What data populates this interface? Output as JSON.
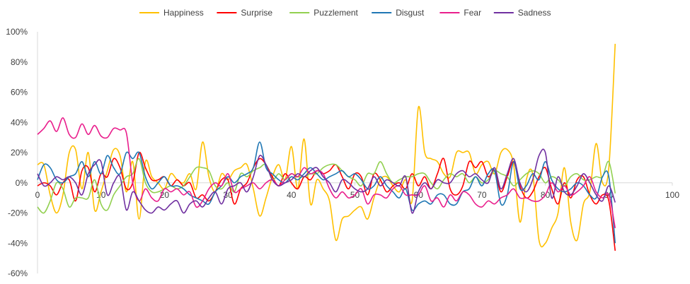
{
  "chart_data": {
    "type": "line",
    "legend_position": "top",
    "grid": "none",
    "xlim": [
      0,
      100
    ],
    "ylim": [
      -0.6,
      1.0
    ],
    "x_ticks": [
      "0",
      "10",
      "20",
      "30",
      "40",
      "50",
      "60",
      "70",
      "80",
      "90",
      "100"
    ],
    "y_ticks": [
      "100%",
      "80%",
      "60%",
      "40%",
      "20%",
      "0%",
      "-20%",
      "-40%",
      "-60%"
    ],
    "series": [
      {
        "name": "Happiness",
        "color": "#FFC000",
        "x": [
          0,
          1,
          2,
          3,
          4,
          5,
          6,
          7,
          8,
          9,
          10,
          11,
          12,
          13,
          14,
          15,
          16,
          17,
          18,
          19,
          20,
          21,
          22,
          23,
          24,
          25,
          26,
          27,
          28,
          29,
          30,
          31,
          32,
          33,
          34,
          35,
          36,
          37,
          38,
          39,
          40,
          41,
          42,
          43,
          44,
          45,
          46,
          47,
          48,
          49,
          50,
          51,
          52,
          53,
          54,
          55,
          56,
          57,
          58,
          59,
          60,
          61,
          62,
          63,
          64,
          65,
          66,
          67,
          68,
          69,
          70,
          71,
          72,
          73,
          74,
          75,
          76,
          77,
          78,
          79,
          80,
          81,
          82,
          83,
          84,
          85,
          86,
          87,
          88,
          89,
          90,
          91
        ],
        "y": [
          0.12,
          0.12,
          -0.08,
          -0.2,
          -0.08,
          0.2,
          0.22,
          -0.04,
          0.2,
          -0.18,
          -0.06,
          0.08,
          0.22,
          0.18,
          -0.06,
          0.14,
          -0.24,
          0.14,
          0.04,
          0.0,
          -0.04,
          0.06,
          0.02,
          0.0,
          0.06,
          -0.04,
          0.27,
          0.04,
          -0.06,
          0.06,
          0.02,
          0.08,
          0.1,
          0.12,
          -0.04,
          -0.22,
          -0.1,
          0.04,
          0.12,
          0.02,
          0.24,
          -0.04,
          0.29,
          -0.14,
          0.02,
          -0.04,
          -0.12,
          -0.38,
          -0.24,
          -0.22,
          -0.18,
          -0.16,
          -0.24,
          -0.1,
          0.02,
          0.04,
          -0.02,
          -0.06,
          0.02,
          -0.12,
          0.5,
          0.2,
          0.16,
          0.14,
          0.06,
          0.04,
          0.2,
          0.2,
          0.2,
          0.06,
          0.12,
          0.14,
          0.06,
          0.2,
          0.22,
          0.12,
          -0.26,
          0.02,
          0.06,
          -0.38,
          -0.4,
          -0.3,
          -0.2,
          0.1,
          -0.26,
          -0.38,
          -0.14,
          -0.06,
          0.26,
          0.0,
          0.1,
          0.92
        ]
      },
      {
        "name": "Surprise",
        "color": "#FF0000",
        "x": [
          0,
          1,
          2,
          3,
          4,
          5,
          6,
          7,
          8,
          9,
          10,
          11,
          12,
          13,
          14,
          15,
          16,
          17,
          18,
          19,
          20,
          21,
          22,
          23,
          24,
          25,
          26,
          27,
          28,
          29,
          30,
          31,
          32,
          33,
          34,
          35,
          36,
          37,
          38,
          39,
          40,
          41,
          42,
          43,
          44,
          45,
          46,
          47,
          48,
          49,
          50,
          51,
          52,
          53,
          54,
          55,
          56,
          57,
          58,
          59,
          60,
          61,
          62,
          63,
          64,
          65,
          66,
          67,
          68,
          69,
          70,
          71,
          72,
          73,
          74,
          75,
          76,
          77,
          78,
          79,
          80,
          81,
          82,
          83,
          84,
          85,
          86,
          87,
          88,
          89,
          90,
          91
        ],
        "y": [
          -0.02,
          0.0,
          -0.02,
          -0.08,
          0.0,
          0.02,
          -0.12,
          0.08,
          0.1,
          -0.06,
          0.06,
          0.04,
          0.16,
          0.1,
          -0.04,
          0.0,
          0.2,
          0.1,
          0.02,
          0.02,
          0.04,
          -0.02,
          0.02,
          -0.02,
          0.0,
          -0.1,
          -0.08,
          -0.12,
          -0.06,
          0.02,
          0.02,
          -0.14,
          -0.04,
          0.0,
          0.1,
          0.16,
          0.12,
          0.04,
          -0.02,
          0.06,
          0.0,
          -0.04,
          0.04,
          0.02,
          0.08,
          0.06,
          0.08,
          0.12,
          0.04,
          -0.04,
          0.06,
          0.04,
          -0.08,
          0.06,
          0.02,
          -0.06,
          -0.02,
          0.0,
          -0.04,
          0.06,
          -0.02,
          0.04,
          -0.04,
          0.06,
          0.16,
          -0.04,
          -0.08,
          -0.02,
          0.14,
          0.1,
          0.14,
          0.04,
          0.08,
          -0.06,
          0.04,
          0.14,
          -0.02,
          -0.1,
          -0.06,
          0.04,
          0.1,
          -0.04,
          -0.14,
          0.0,
          -0.1,
          0.02,
          0.04,
          -0.08,
          -0.14,
          -0.08,
          -0.12,
          -0.45
        ]
      },
      {
        "name": "Puzzlement",
        "color": "#92D050",
        "x": [
          0,
          1,
          2,
          3,
          4,
          5,
          6,
          7,
          8,
          9,
          10,
          11,
          12,
          13,
          14,
          15,
          16,
          17,
          18,
          19,
          20,
          21,
          22,
          23,
          24,
          25,
          26,
          27,
          28,
          29,
          30,
          31,
          32,
          33,
          34,
          35,
          36,
          37,
          38,
          39,
          40,
          41,
          42,
          43,
          44,
          45,
          46,
          47,
          48,
          49,
          50,
          51,
          52,
          53,
          54,
          55,
          56,
          57,
          58,
          59,
          60,
          61,
          62,
          63,
          64,
          65,
          66,
          67,
          68,
          69,
          70,
          71,
          72,
          73,
          74,
          75,
          76,
          77,
          78,
          79,
          80,
          81,
          82,
          83,
          84,
          85,
          86,
          87,
          88,
          89,
          90,
          91
        ],
        "y": [
          -0.16,
          -0.2,
          -0.12,
          0.0,
          -0.04,
          -0.16,
          -0.1,
          -0.1,
          -0.1,
          0.02,
          -0.14,
          -0.18,
          -0.08,
          -0.02,
          0.04,
          0.06,
          0.16,
          0.0,
          -0.06,
          -0.06,
          -0.04,
          -0.02,
          -0.04,
          -0.02,
          0.04,
          0.1,
          0.1,
          0.08,
          -0.02,
          -0.04,
          0.0,
          -0.06,
          0.06,
          0.04,
          0.08,
          0.1,
          0.12,
          0.02,
          0.06,
          0.02,
          0.06,
          0.04,
          0.04,
          0.06,
          0.06,
          0.1,
          0.12,
          0.12,
          0.08,
          0.04,
          0.02,
          -0.02,
          0.06,
          0.06,
          0.14,
          0.06,
          0.0,
          0.02,
          0.04,
          0.04,
          0.06,
          0.06,
          0.0,
          -0.04,
          0.02,
          0.06,
          0.04,
          0.06,
          0.0,
          0.04,
          0.0,
          0.02,
          0.08,
          0.06,
          0.04,
          -0.02,
          0.02,
          0.06,
          0.08,
          0.06,
          0.0,
          0.04,
          0.02,
          -0.02,
          0.04,
          0.06,
          0.02,
          0.02,
          0.04,
          0.04,
          0.14,
          -0.07
        ]
      },
      {
        "name": "Disgust",
        "color": "#1F77B4",
        "x": [
          0,
          1,
          2,
          3,
          4,
          5,
          6,
          7,
          8,
          9,
          10,
          11,
          12,
          13,
          14,
          15,
          16,
          17,
          18,
          19,
          20,
          21,
          22,
          23,
          24,
          25,
          26,
          27,
          28,
          29,
          30,
          31,
          32,
          33,
          34,
          35,
          36,
          37,
          38,
          39,
          40,
          41,
          42,
          43,
          44,
          45,
          46,
          47,
          48,
          49,
          50,
          51,
          52,
          53,
          54,
          55,
          56,
          57,
          58,
          59,
          60,
          61,
          62,
          63,
          64,
          65,
          66,
          67,
          68,
          69,
          70,
          71,
          72,
          73,
          74,
          75,
          76,
          77,
          78,
          79,
          80,
          81,
          82,
          83,
          84,
          85,
          86,
          87,
          88,
          89,
          90,
          91
        ],
        "y": [
          0.02,
          0.12,
          0.1,
          0.02,
          0.0,
          0.04,
          0.06,
          0.14,
          0.04,
          0.14,
          0.06,
          0.18,
          0.1,
          0.06,
          0.2,
          0.16,
          0.2,
          0.04,
          -0.04,
          0.0,
          0.04,
          -0.02,
          -0.02,
          -0.04,
          -0.08,
          -0.1,
          -0.12,
          -0.14,
          -0.06,
          -0.02,
          0.04,
          0.0,
          0.04,
          0.06,
          0.1,
          0.27,
          0.1,
          0.06,
          0.02,
          0.0,
          0.04,
          0.02,
          0.06,
          0.1,
          0.06,
          0.02,
          0.04,
          0.06,
          0.08,
          0.04,
          0.06,
          0.02,
          -0.04,
          -0.02,
          0.04,
          -0.02,
          -0.06,
          -0.1,
          -0.04,
          -0.18,
          -0.14,
          -0.12,
          -0.14,
          -0.08,
          -0.08,
          -0.14,
          -0.14,
          -0.06,
          -0.04,
          0.04,
          -0.02,
          0.06,
          0.08,
          -0.14,
          -0.08,
          0.14,
          -0.04,
          -0.02,
          0.06,
          0.02,
          0.14,
          0.02,
          -0.04,
          -0.06,
          -0.04,
          0.0,
          -0.02,
          -0.08,
          -0.1,
          0.04,
          0.04,
          -0.4
        ]
      },
      {
        "name": "Fear",
        "color": "#E91E8C",
        "x": [
          0,
          1,
          2,
          3,
          4,
          5,
          6,
          7,
          8,
          9,
          10,
          11,
          12,
          13,
          14,
          15,
          16,
          17,
          18,
          19,
          20,
          21,
          22,
          23,
          24,
          25,
          26,
          27,
          28,
          29,
          30,
          31,
          32,
          33,
          34,
          35,
          36,
          37,
          38,
          39,
          40,
          41,
          42,
          43,
          44,
          45,
          46,
          47,
          48,
          49,
          50,
          51,
          52,
          53,
          54,
          55,
          56,
          57,
          58,
          59,
          60,
          61,
          62,
          63,
          64,
          65,
          66,
          67,
          68,
          69,
          70,
          71,
          72,
          73,
          74,
          75,
          76,
          77,
          78,
          79,
          80,
          81,
          82,
          83,
          84,
          85,
          86,
          87,
          88,
          89,
          90,
          91
        ],
        "y": [
          0.32,
          0.36,
          0.41,
          0.34,
          0.43,
          0.32,
          0.3,
          0.39,
          0.32,
          0.38,
          0.31,
          0.3,
          0.36,
          0.35,
          0.33,
          0.0,
          -0.12,
          -0.04,
          -0.1,
          -0.12,
          -0.04,
          -0.06,
          -0.04,
          -0.08,
          -0.06,
          -0.16,
          -0.12,
          -0.04,
          0.0,
          -0.02,
          0.06,
          -0.06,
          -0.04,
          -0.02,
          0.0,
          -0.04,
          0.0,
          0.02,
          -0.02,
          0.02,
          0.06,
          0.04,
          0.1,
          0.06,
          0.08,
          0.06,
          -0.04,
          -0.1,
          -0.06,
          -0.1,
          -0.08,
          -0.04,
          -0.14,
          -0.08,
          -0.08,
          -0.1,
          -0.04,
          -0.02,
          -0.08,
          -0.08,
          -0.08,
          -0.02,
          -0.12,
          -0.1,
          -0.16,
          -0.08,
          -0.12,
          -0.06,
          -0.08,
          -0.14,
          -0.16,
          -0.12,
          -0.14,
          -0.1,
          -0.08,
          -0.04,
          -0.1,
          -0.1,
          -0.12,
          -0.12,
          -0.08,
          0.0,
          -0.06,
          -0.02,
          -0.08,
          -0.06,
          -0.02,
          0.04,
          -0.06,
          -0.1,
          -0.08,
          -0.3
        ]
      },
      {
        "name": "Sadness",
        "color": "#7030A0",
        "x": [
          0,
          1,
          2,
          3,
          4,
          5,
          6,
          7,
          8,
          9,
          10,
          11,
          12,
          13,
          14,
          15,
          16,
          17,
          18,
          19,
          20,
          21,
          22,
          23,
          24,
          25,
          26,
          27,
          28,
          29,
          30,
          31,
          32,
          33,
          34,
          35,
          36,
          37,
          38,
          39,
          40,
          41,
          42,
          43,
          44,
          45,
          46,
          47,
          48,
          49,
          50,
          51,
          52,
          53,
          54,
          55,
          56,
          57,
          58,
          59,
          60,
          61,
          62,
          63,
          64,
          65,
          66,
          67,
          68,
          69,
          70,
          71,
          72,
          73,
          74,
          75,
          76,
          77,
          78,
          79,
          80,
          81,
          82,
          83,
          84,
          85,
          86,
          87,
          88,
          89,
          90,
          91
        ],
        "y": [
          0.06,
          -0.02,
          0.0,
          0.04,
          0.02,
          0.04,
          0.0,
          -0.08,
          0.06,
          0.12,
          0.14,
          -0.08,
          0.0,
          0.04,
          -0.18,
          -0.06,
          -0.12,
          -0.18,
          -0.2,
          -0.16,
          -0.18,
          -0.14,
          -0.12,
          -0.2,
          -0.14,
          -0.12,
          -0.16,
          -0.1,
          -0.06,
          -0.14,
          -0.04,
          -0.02,
          0.0,
          -0.06,
          0.04,
          0.18,
          0.12,
          0.02,
          -0.02,
          0.0,
          0.02,
          0.06,
          0.04,
          0.08,
          0.1,
          0.04,
          0.0,
          -0.06,
          0.02,
          0.0,
          -0.04,
          -0.06,
          -0.04,
          0.04,
          -0.02,
          0.02,
          0.0,
          -0.02,
          0.04,
          -0.2,
          -0.06,
          0.0,
          -0.04,
          0.02,
          0.0,
          0.0,
          0.06,
          0.08,
          0.04,
          0.06,
          0.02,
          0.0,
          0.1,
          -0.04,
          0.06,
          0.16,
          0.0,
          -0.06,
          0.02,
          0.18,
          0.2,
          -0.1,
          0.04,
          -0.06,
          -0.08,
          -0.02,
          0.06,
          0.0,
          -0.08,
          -0.12,
          -0.02,
          -0.13
        ]
      }
    ]
  }
}
